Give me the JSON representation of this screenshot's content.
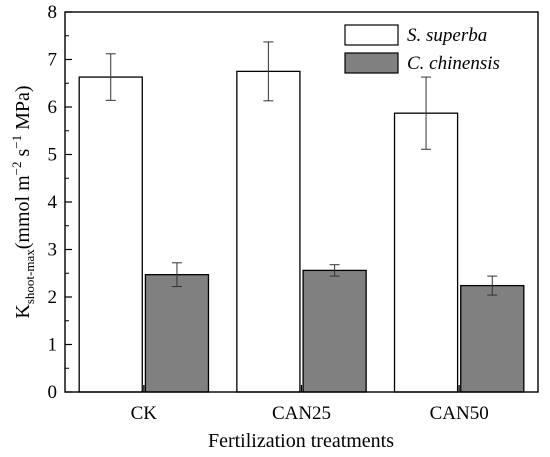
{
  "chart_data": {
    "type": "bar",
    "categories": [
      "CK",
      "CAN25",
      "CAN50"
    ],
    "series": [
      {
        "name": "S. superba",
        "values": [
          6.63,
          6.75,
          5.87
        ],
        "errors": [
          0.49,
          0.62,
          0.76
        ],
        "color": "#ffffff"
      },
      {
        "name": "C. chinensis",
        "values": [
          2.47,
          2.56,
          2.24
        ],
        "errors": [
          0.25,
          0.12,
          0.2
        ],
        "color": "#808080"
      }
    ],
    "xlabel": "Fertilization treatments",
    "ylabel": {
      "main": "K",
      "subscript": "shoot-max",
      "unit_prefix": "(mmol m",
      "exp1": "−2",
      "unit_mid": " s",
      "exp2": "−1",
      "unit_suffix": " MPa)"
    },
    "ylim": [
      0,
      8
    ],
    "yticks": [
      0,
      1,
      2,
      3,
      4,
      5,
      6,
      7,
      8
    ],
    "grid": false,
    "legend_position": "top-right"
  }
}
